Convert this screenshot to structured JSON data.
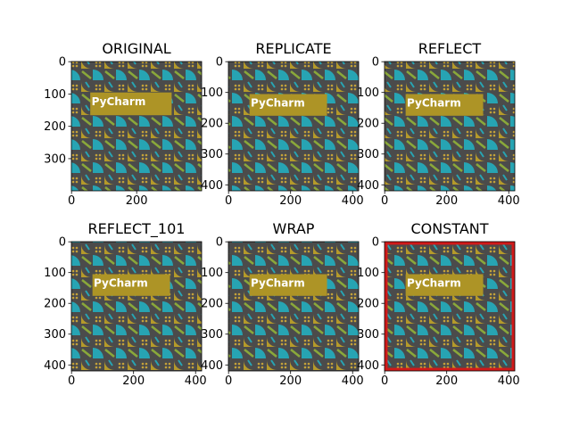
{
  "chart_data": [
    {
      "type": "image",
      "title": "ORIGINAL",
      "image_text": "PyCharm",
      "padding": 0,
      "xlim": [
        -0.5,
        399.5
      ],
      "ylim": [
        399.5,
        -0.5
      ],
      "xticks": [
        0,
        200
      ],
      "yticks": [
        0,
        100,
        200,
        300
      ]
    },
    {
      "type": "image",
      "title": "REPLICATE",
      "image_text": "PyCharm",
      "padding": 10,
      "xlim": [
        -0.5,
        419.5
      ],
      "ylim": [
        419.5,
        -0.5
      ],
      "xticks": [
        0,
        200,
        400
      ],
      "yticks": [
        0,
        100,
        200,
        300,
        400
      ]
    },
    {
      "type": "image",
      "title": "REFLECT",
      "image_text": "PyCharm",
      "padding": 10,
      "xlim": [
        -0.5,
        419.5
      ],
      "ylim": [
        419.5,
        -0.5
      ],
      "xticks": [
        0,
        200,
        400
      ],
      "yticks": [
        0,
        100,
        200,
        300,
        400
      ]
    },
    {
      "type": "image",
      "title": "REFLECT_101",
      "image_text": "PyCharm",
      "padding": 10,
      "xlim": [
        -0.5,
        419.5
      ],
      "ylim": [
        419.5,
        -0.5
      ],
      "xticks": [
        0,
        200,
        400
      ],
      "yticks": [
        0,
        100,
        200,
        300,
        400
      ]
    },
    {
      "type": "image",
      "title": "WRAP",
      "image_text": "PyCharm",
      "padding": 10,
      "xlim": [
        -0.5,
        419.5
      ],
      "ylim": [
        419.5,
        -0.5
      ],
      "xticks": [
        0,
        200,
        400
      ],
      "yticks": [
        0,
        100,
        200,
        300,
        400
      ]
    },
    {
      "type": "image",
      "title": "CONSTANT",
      "image_text": "PyCharm",
      "padding": 10,
      "border_color": "#d11a1a",
      "xlim": [
        -0.5,
        419.5
      ],
      "ylim": [
        419.5,
        -0.5
      ],
      "xticks": [
        0,
        200,
        400
      ],
      "yticks": [
        0,
        100,
        200,
        300,
        400
      ]
    }
  ]
}
